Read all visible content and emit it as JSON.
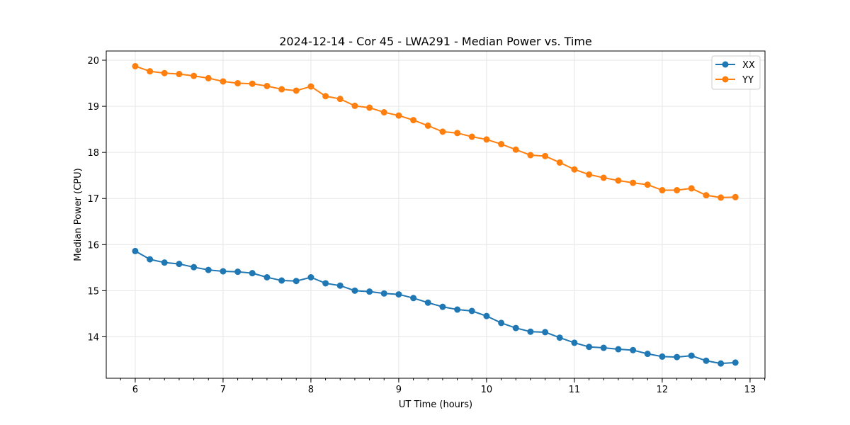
{
  "chart_data": {
    "type": "line",
    "title": "2024-12-14 - Cor 45 - LWA291 - Median Power vs. Time",
    "xlabel": "UT Time (hours)",
    "ylabel": "Median Power (CPU)",
    "xlim": [
      5.67,
      13.17
    ],
    "ylim": [
      13.1,
      20.2
    ],
    "xticks": [
      6,
      7,
      8,
      9,
      10,
      11,
      12,
      13
    ],
    "yticks": [
      14,
      15,
      16,
      17,
      18,
      19,
      20
    ],
    "grid": true,
    "legend_position": "top-right",
    "x": [
      6.0,
      6.167,
      6.333,
      6.5,
      6.667,
      6.833,
      7.0,
      7.167,
      7.333,
      7.5,
      7.667,
      7.833,
      8.0,
      8.167,
      8.333,
      8.5,
      8.667,
      8.833,
      9.0,
      9.167,
      9.333,
      9.5,
      9.667,
      9.833,
      10.0,
      10.167,
      10.333,
      10.5,
      10.667,
      10.833,
      11.0,
      11.167,
      11.333,
      11.5,
      11.667,
      11.833,
      12.0,
      12.167,
      12.333,
      12.5,
      12.667,
      12.833
    ],
    "series": [
      {
        "name": "XX",
        "color": "#1f77b4",
        "values": [
          15.86,
          15.68,
          15.61,
          15.58,
          15.51,
          15.45,
          15.42,
          15.41,
          15.38,
          15.29,
          15.22,
          15.21,
          15.29,
          15.16,
          15.11,
          15.0,
          14.98,
          14.94,
          14.92,
          14.84,
          14.74,
          14.65,
          14.59,
          14.56,
          14.45,
          14.3,
          14.19,
          14.11,
          14.1,
          13.98,
          13.87,
          13.78,
          13.76,
          13.73,
          13.71,
          13.63,
          13.57,
          13.56,
          13.59,
          13.48,
          13.42,
          13.44
        ]
      },
      {
        "name": "YY",
        "color": "#ff7f0e",
        "values": [
          19.87,
          19.76,
          19.72,
          19.7,
          19.66,
          19.61,
          19.54,
          19.5,
          19.49,
          19.44,
          19.37,
          19.34,
          19.43,
          19.22,
          19.16,
          19.01,
          18.97,
          18.87,
          18.8,
          18.7,
          18.58,
          18.45,
          18.42,
          18.34,
          18.28,
          18.18,
          18.06,
          17.94,
          17.92,
          17.78,
          17.63,
          17.52,
          17.45,
          17.39,
          17.34,
          17.3,
          17.18,
          17.18,
          17.22,
          17.07,
          17.02,
          17.03
        ]
      }
    ]
  }
}
